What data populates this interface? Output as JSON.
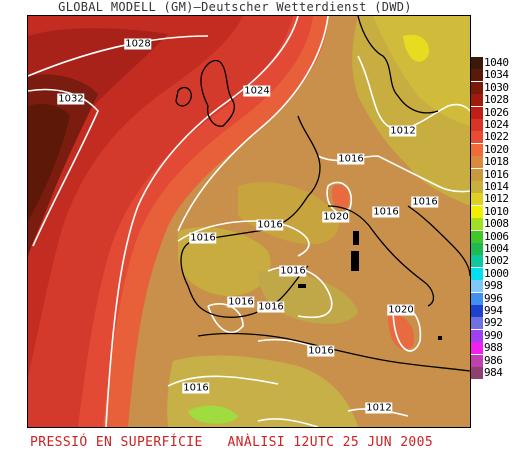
{
  "title": "GLOBAL MODELL (GM)—Deutscher Wetterdienst (DWD)",
  "footer": "PRESSIÓ EN SUPERFÍCIE   ANÀLISI 12UTC 25 JUN 2005",
  "isobar_labels": [
    "1028",
    "1032",
    "1024",
    "1012",
    "1016",
    "1020",
    "1016",
    "1016",
    "1016",
    "1016",
    "1016",
    "1016",
    "1020",
    "1016",
    "1016",
    "1016",
    "1012"
  ],
  "legend": [
    {
      "value": "1040",
      "color": "#3c1808"
    },
    {
      "value": "1034",
      "color": "#5a1a08"
    },
    {
      "value": "1030",
      "color": "#7a1a08"
    },
    {
      "value": "1028",
      "color": "#a01a10"
    },
    {
      "value": "1026",
      "color": "#c21e16"
    },
    {
      "value": "1024",
      "color": "#d83428"
    },
    {
      "value": "1022",
      "color": "#e84a34"
    },
    {
      "value": "1020",
      "color": "#f06a3a"
    },
    {
      "value": "1018",
      "color": "#d98a3e"
    },
    {
      "value": "1016",
      "color": "#c89a3c"
    },
    {
      "value": "1014",
      "color": "#c8b03c"
    },
    {
      "value": "1012",
      "color": "#e0d020"
    },
    {
      "value": "1010",
      "color": "#f0f000"
    },
    {
      "value": "1008",
      "color": "#a0e020"
    },
    {
      "value": "1006",
      "color": "#40c828"
    },
    {
      "value": "1004",
      "color": "#20b850"
    },
    {
      "value": "1002",
      "color": "#10c8a0"
    },
    {
      "value": "1000",
      "color": "#00e0f0"
    },
    {
      "value": "998",
      "color": "#80c8f8"
    },
    {
      "value": "996",
      "color": "#4090f0"
    },
    {
      "value": "994",
      "color": "#2040d0"
    },
    {
      "value": "992",
      "color": "#7070e0"
    },
    {
      "value": "990",
      "color": "#a040f0"
    },
    {
      "value": "988",
      "color": "#f020f0"
    },
    {
      "value": "986",
      "color": "#c040b0"
    },
    {
      "value": "984",
      "color": "#904070"
    }
  ]
}
